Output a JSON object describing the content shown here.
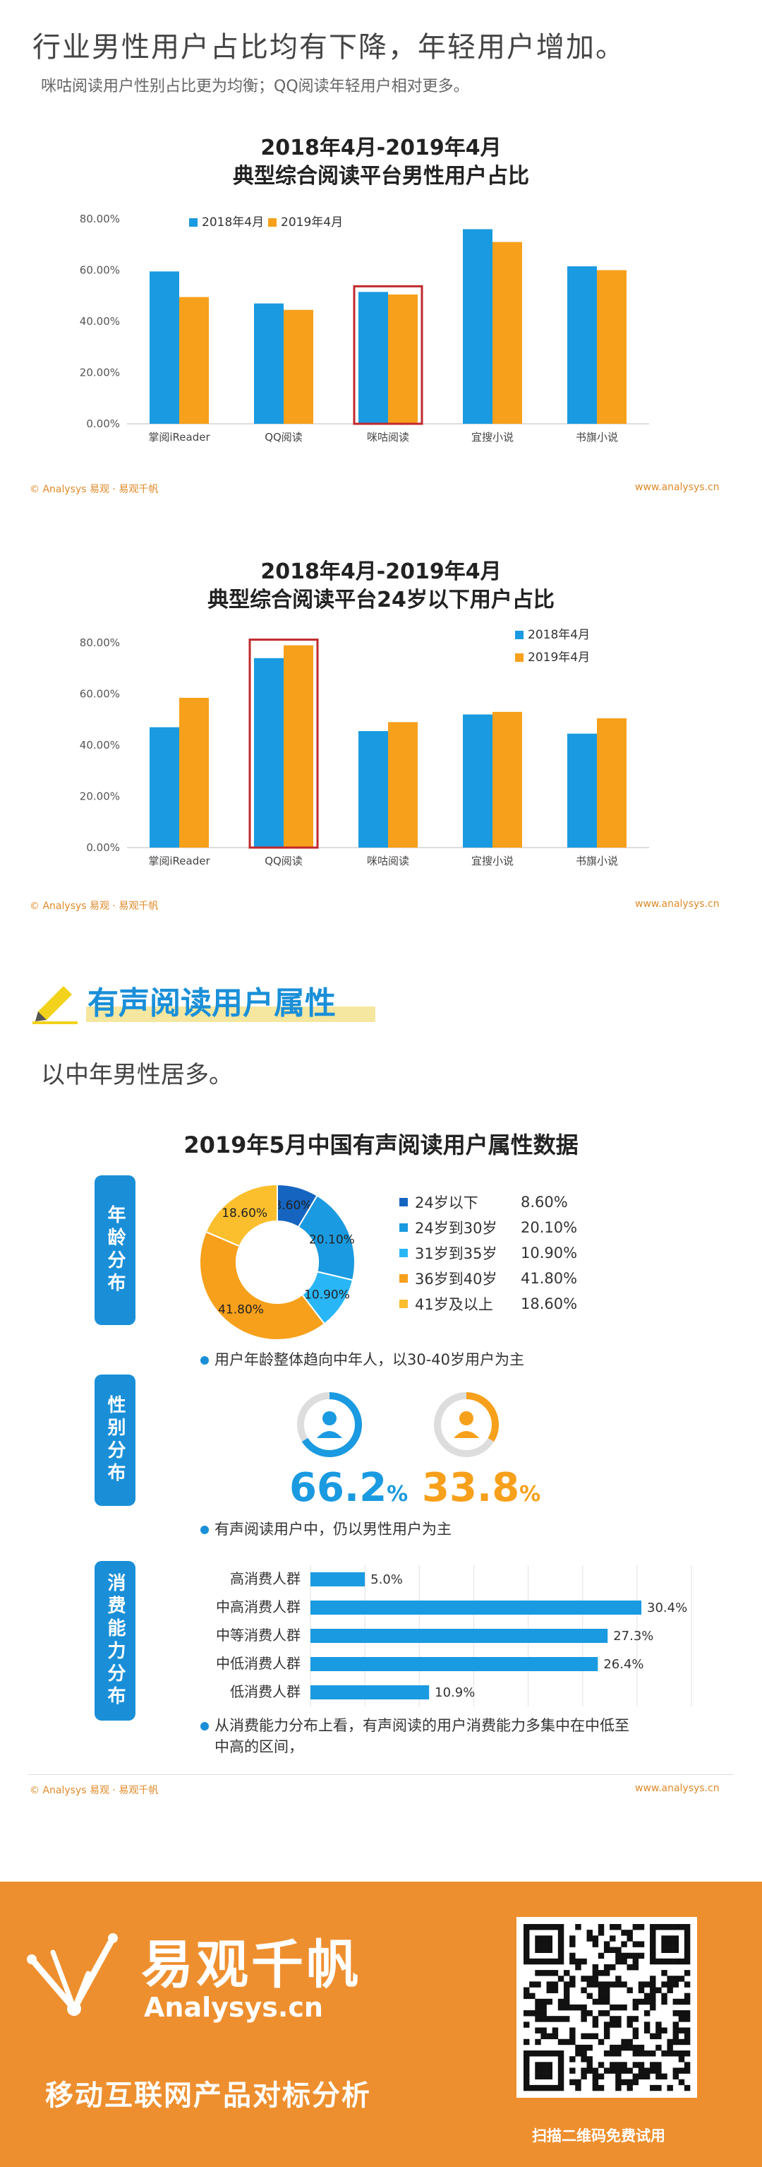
{
  "header": {
    "headline": "行业男性用户占比均有下降，年轻用户增加。",
    "subhead": "咪咕阅读用户性别占比更为均衡；QQ阅读年轻用户相对更多。"
  },
  "chart1": {
    "title_line1": "2018年4月-2019年4月",
    "title_line2": "典型综合阅读平台男性用户占比"
  },
  "chart2": {
    "title_line1": "2018年4月-2019年4月",
    "title_line2": "典型综合阅读平台24岁以下用户占比"
  },
  "footer": {
    "left": "© Analysys 易观 · 易观千帆",
    "right": "www.analysys.cn"
  },
  "section": {
    "title": "有声阅读用户属性",
    "subtitle": "以中年男性居多。",
    "infographic_title": "2019年5月中国有声阅读用户属性数据",
    "age_label": "年龄分布",
    "gender_label": "性别分布",
    "consume_label": "消费能力分布",
    "age_note": "用户年龄整体趋向中年人，以30-40岁用户为主",
    "gender_note": "有声阅读用户中，仍以男性用户为主",
    "consume_note_line1": "从消费能力分布上看，有声阅读的用户消费能力多集中在中低至",
    "consume_note_line2": "中高的区间，",
    "male_value": "66.2",
    "female_value": "33.8",
    "pct_sign": "%"
  },
  "brand": {
    "name_cn": "易观千帆",
    "name_en": "Analysys.cn",
    "slogan": "移动互联网产品对标分析",
    "qr_caption": "扫描二维码免费试用"
  },
  "colors": {
    "blue": "#1a9ae0",
    "orange": "#f7a01b",
    "highlight": "#c0282c",
    "dark_blue": "#1565c0"
  },
  "chart_data": [
    {
      "type": "bar",
      "title": "2018年4月-2019年4月 典型综合阅读平台男性用户占比",
      "categories": [
        "掌阅iReader",
        "QQ阅读",
        "咪咕阅读",
        "宜搜小说",
        "书旗小说"
      ],
      "series": [
        {
          "name": "2018年4月",
          "values": [
            59.5,
            47.0,
            51.5,
            76.0,
            61.5
          ]
        },
        {
          "name": "2019年4月",
          "values": [
            49.5,
            44.5,
            50.5,
            71.0,
            60.0
          ]
        }
      ],
      "ylim": [
        0,
        80
      ],
      "yticks": [
        "0.00%",
        "20.00%",
        "40.00%",
        "60.00%",
        "80.00%"
      ],
      "highlight_category": "咪咕阅读",
      "legend": "top-left"
    },
    {
      "type": "bar",
      "title": "2018年4月-2019年4月 典型综合阅读平台24岁以下用户占比",
      "categories": [
        "掌阅iReader",
        "QQ阅读",
        "咪咕阅读",
        "宜搜小说",
        "书旗小说"
      ],
      "series": [
        {
          "name": "2018年4月",
          "values": [
            47.0,
            74.0,
            45.5,
            52.0,
            44.5
          ]
        },
        {
          "name": "2019年4月",
          "values": [
            58.5,
            79.0,
            49.0,
            53.0,
            50.5
          ]
        }
      ],
      "ylim": [
        0,
        80
      ],
      "yticks": [
        "0.00%",
        "20.00%",
        "40.00%",
        "60.00%",
        "80.00%"
      ],
      "highlight_category": "QQ阅读",
      "legend": "top-right"
    },
    {
      "type": "pie",
      "title": "年龄分布",
      "labels": [
        "24岁以下",
        "24岁到30岁",
        "31岁到35岁",
        "36岁到40岁",
        "41岁及以上"
      ],
      "values": [
        8.6,
        20.1,
        10.9,
        41.8,
        18.6
      ],
      "display": [
        "8.60%",
        "20.10%",
        "10.90%",
        "41.80%",
        "18.60%"
      ],
      "colors": [
        "#1565c0",
        "#1a9ae0",
        "#29b6f6",
        "#f7a01b",
        "#fbbf2d"
      ]
    },
    {
      "type": "bar",
      "title": "消费能力分布",
      "orientation": "horizontal",
      "categories": [
        "高消费人群",
        "中高消费人群",
        "中等消费人群",
        "中低消费人群",
        "低消费人群"
      ],
      "values": [
        5.0,
        30.4,
        27.3,
        26.4,
        10.9
      ],
      "display": [
        "5.0%",
        "30.4%",
        "27.3%",
        "26.4%",
        "10.9%"
      ],
      "xlim": [
        0,
        35
      ]
    }
  ]
}
